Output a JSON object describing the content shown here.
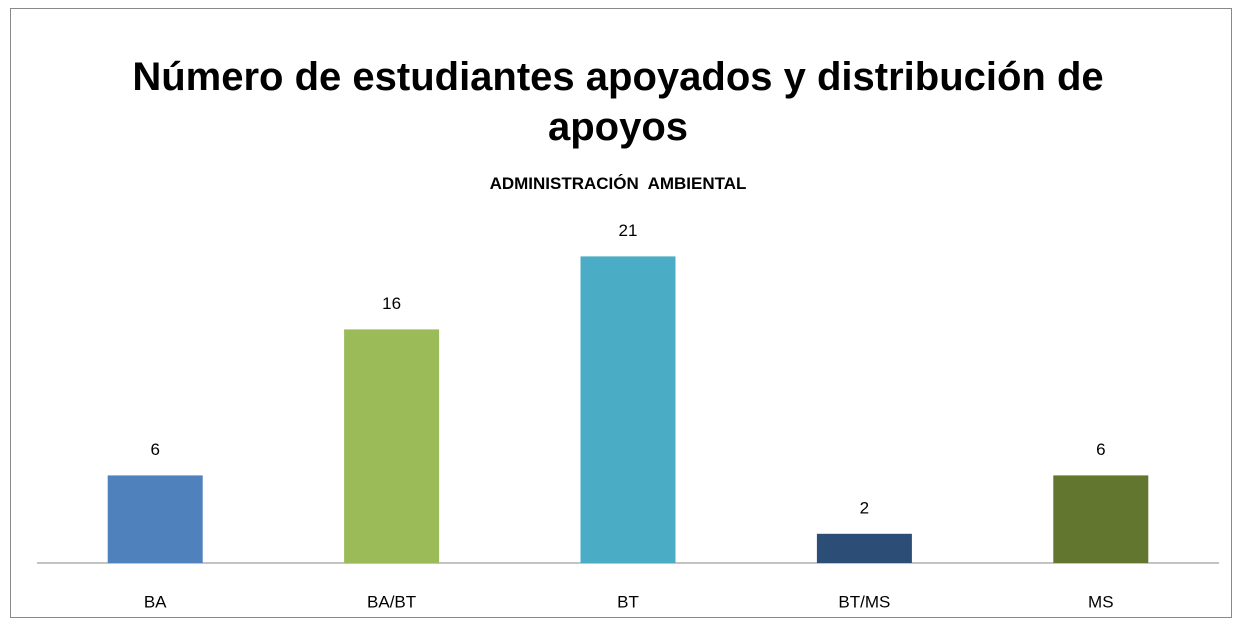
{
  "chart_data": {
    "type": "bar",
    "title": "Número de estudiantes apoyados y distribución de apoyos",
    "subtitle": "ADMINISTRACIÓN  AMBIENTAL",
    "categories": [
      "BA",
      "BA/BT",
      "BT",
      "BT/MS",
      "MS"
    ],
    "values": [
      6,
      16,
      21,
      2,
      6
    ],
    "colors": [
      "#4f81bd",
      "#9bbb59",
      "#4bacc6",
      "#2c4d75",
      "#62762f"
    ],
    "ylim": [
      0,
      25
    ]
  }
}
